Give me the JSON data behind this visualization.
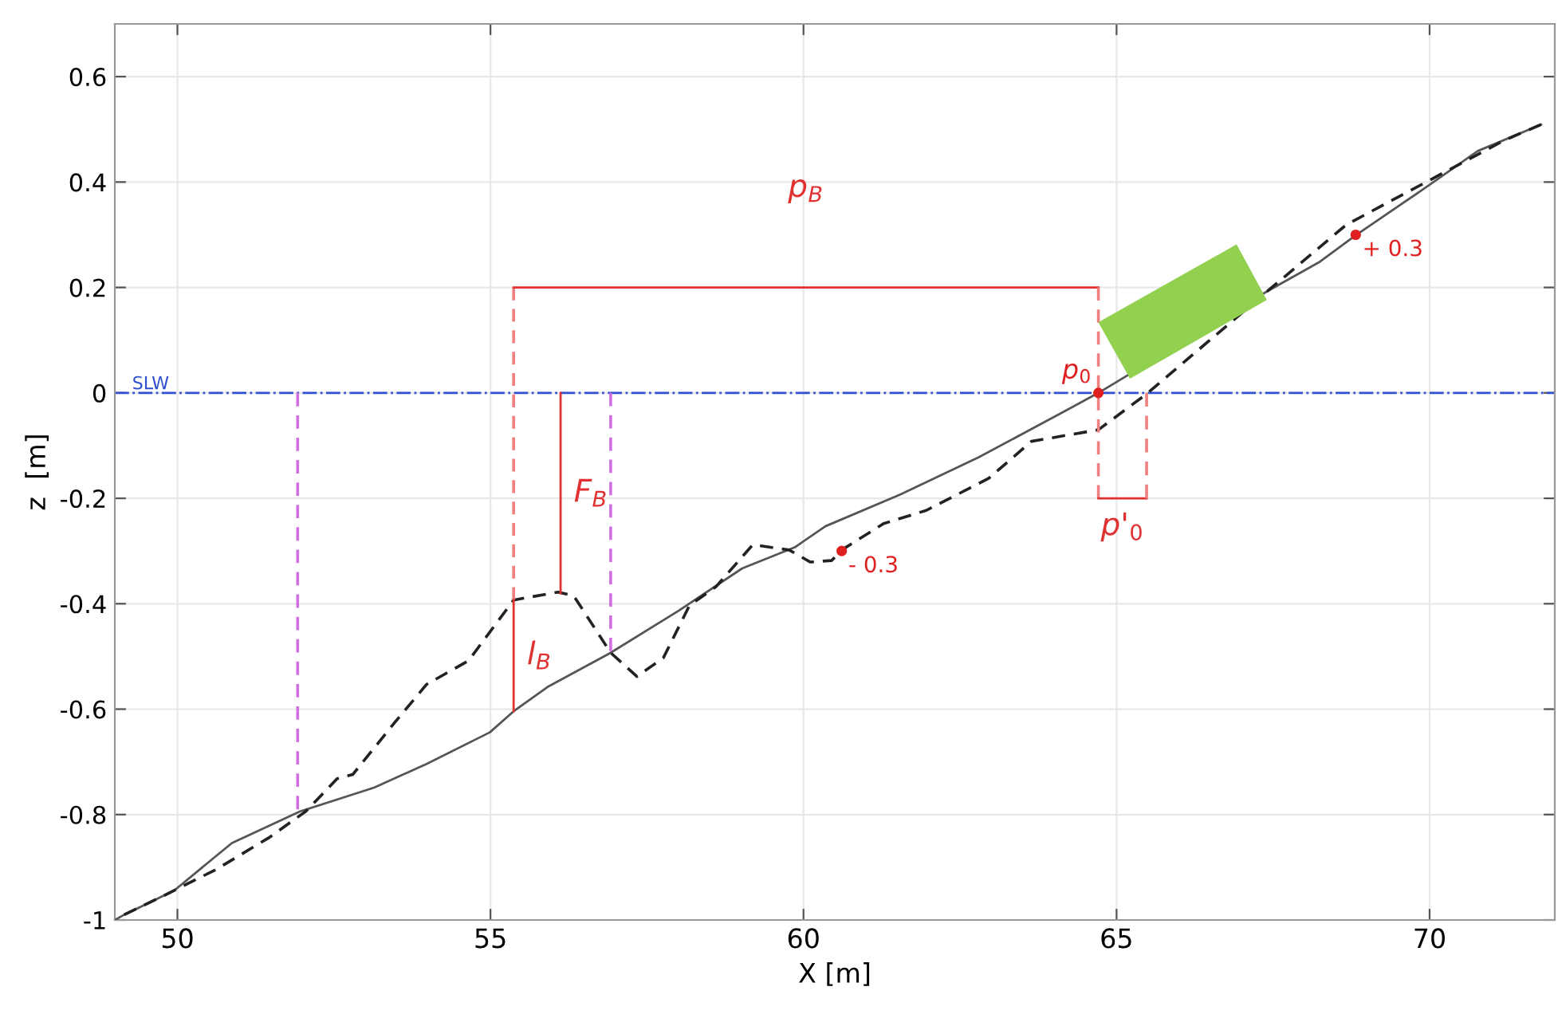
{
  "chart_data": {
    "type": "line",
    "xlabel": "X [m]",
    "ylabel": "z  [m]",
    "xlim": [
      49,
      72
    ],
    "ylim": [
      -1,
      0.7
    ],
    "xticks": [
      50,
      55,
      60,
      65,
      70
    ],
    "yticks": [
      -1,
      -0.8,
      -0.6,
      -0.4,
      -0.2,
      0,
      0.2,
      0.4,
      0.6
    ],
    "grid": true,
    "ref_lines": [
      {
        "axis": "y",
        "value": 0,
        "label": "SLW",
        "color": "#3050d0",
        "line_style": "dashdot"
      }
    ],
    "series": [
      {
        "color": "#555555",
        "line_style": "solid",
        "x": [
          49.0,
          49.15,
          49.95,
          50.87,
          51.96,
          53.14,
          53.98,
          54.99,
          55.37,
          55.91,
          56.92,
          58.01,
          59.02,
          59.86,
          60.35,
          61.54,
          62.8,
          64.06,
          64.71,
          67.41,
          68.25,
          68.82,
          69.93,
          70.77,
          71.78
        ],
        "values": [
          -1.0,
          -0.99,
          -0.944,
          -0.854,
          -0.794,
          -0.749,
          -0.704,
          -0.644,
          -0.604,
          -0.558,
          -0.493,
          -0.413,
          -0.333,
          -0.293,
          -0.253,
          -0.193,
          -0.122,
          -0.042,
          0.0,
          0.193,
          0.249,
          0.299,
          0.389,
          0.459,
          0.509
        ]
      },
      {
        "color": "#222222",
        "line_style": "dashed",
        "x": [
          49.15,
          49.78,
          50.62,
          51.46,
          52.05,
          52.55,
          52.8,
          53.48,
          53.98,
          54.65,
          55.37,
          56.08,
          56.33,
          56.92,
          57.34,
          57.76,
          58.18,
          58.6,
          59.19,
          59.77,
          60.11,
          60.45,
          60.61,
          61.28,
          61.96,
          62.96,
          63.64,
          64.71,
          65.48,
          67.41,
          68.67,
          69.93,
          71.19,
          71.78
        ],
        "values": [
          -0.99,
          -0.954,
          -0.904,
          -0.844,
          -0.794,
          -0.732,
          -0.724,
          -0.624,
          -0.553,
          -0.508,
          -0.393,
          -0.378,
          -0.385,
          -0.493,
          -0.538,
          -0.503,
          -0.403,
          -0.368,
          -0.288,
          -0.298,
          -0.321,
          -0.318,
          -0.298,
          -0.248,
          -0.223,
          -0.162,
          -0.092,
          -0.07,
          -0.002,
          0.193,
          0.319,
          0.399,
          0.479,
          0.509
        ]
      },
      {
        "color": "#d070e0",
        "line_style": "dashed",
        "x": [
          51.92,
          51.92
        ],
        "values": [
          0,
          -0.79
        ]
      },
      {
        "color": "#d070e0",
        "line_style": "dashed",
        "x": [
          56.92,
          56.92
        ],
        "values": [
          0,
          -0.49
        ]
      },
      {
        "color": "#f08080",
        "line_style": "dashed",
        "x": [
          55.37,
          55.37
        ],
        "values": [
          0.2,
          -0.393
        ]
      },
      {
        "name": "p$_{B}$",
        "color": "#e03030",
        "line_style": "solid",
        "x": [
          55.37,
          64.71
        ],
        "values": [
          0.2,
          0.2
        ]
      },
      {
        "color": "#f08080",
        "line_style": "dashed",
        "x": [
          64.71,
          64.71
        ],
        "values": [
          0.2,
          -0.2
        ]
      },
      {
        "name": "p'$_{0}$",
        "color": "#e03030",
        "line_style": "solid",
        "x": [
          64.71,
          65.48
        ],
        "values": [
          -0.2,
          -0.2
        ]
      },
      {
        "color": "#f08080",
        "line_style": "dashed",
        "x": [
          65.48,
          65.48
        ],
        "values": [
          -0.2,
          0
        ]
      },
      {
        "name": "F$_{B}$",
        "color": "#e03030",
        "line_style": "solid",
        "x": [
          56.12,
          56.12
        ],
        "values": [
          0,
          -0.38
        ]
      },
      {
        "name": "l$_{B}$",
        "color": "#e03030",
        "line_style": "solid",
        "x": [
          55.37,
          55.37
        ],
        "values": [
          -0.604,
          -0.393
        ]
      },
      {
        "type": "scatter",
        "color": "#e02020",
        "marker": "circle",
        "x": [
          64.71,
          68.82,
          60.61
        ],
        "values": [
          0,
          0.3,
          -0.3
        ],
        "value_labels": [
          "p$_{0}$",
          "+ 0.3",
          "- 0.3"
        ]
      }
    ]
  }
}
